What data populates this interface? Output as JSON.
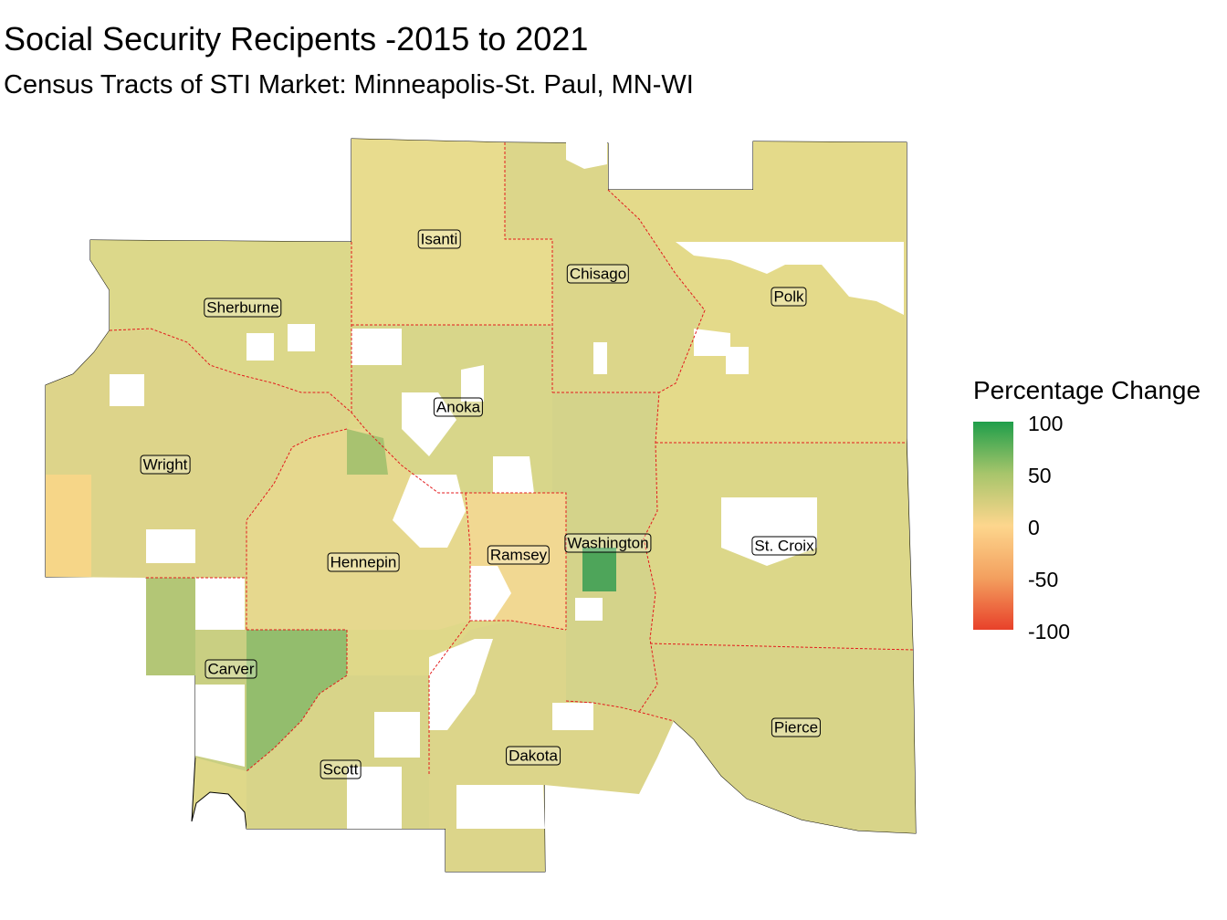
{
  "title": "Social Security Recipents -2015 to 2021",
  "subtitle": "Census Tracts of STI Market: Minneapolis-St. Paul, MN-WI",
  "legend": {
    "title": "Percentage Change",
    "ticks": [
      "100",
      "50",
      "0",
      "-50",
      "-100"
    ],
    "colors": {
      "high": "#1f9e4a",
      "mid": "#fdd68d",
      "low": "#e8412a"
    }
  },
  "border_color": "#e31a1c",
  "counties": [
    {
      "name": "Isanti",
      "value": 12
    },
    {
      "name": "Chisago",
      "value": 18
    },
    {
      "name": "Polk",
      "value": 15
    },
    {
      "name": "Sherburne",
      "value": 22
    },
    {
      "name": "Anoka",
      "value": 20
    },
    {
      "name": "Wright",
      "value": 17
    },
    {
      "name": "Hennepin",
      "value": 14
    },
    {
      "name": "Ramsey",
      "value": 8
    },
    {
      "name": "Washington",
      "value": 26
    },
    {
      "name": "St. Croix",
      "value": 19
    },
    {
      "name": "Carver",
      "value": 40
    },
    {
      "name": "Scott",
      "value": 24
    },
    {
      "name": "Dakota",
      "value": 21
    },
    {
      "name": "Pierce",
      "value": 23
    }
  ]
}
